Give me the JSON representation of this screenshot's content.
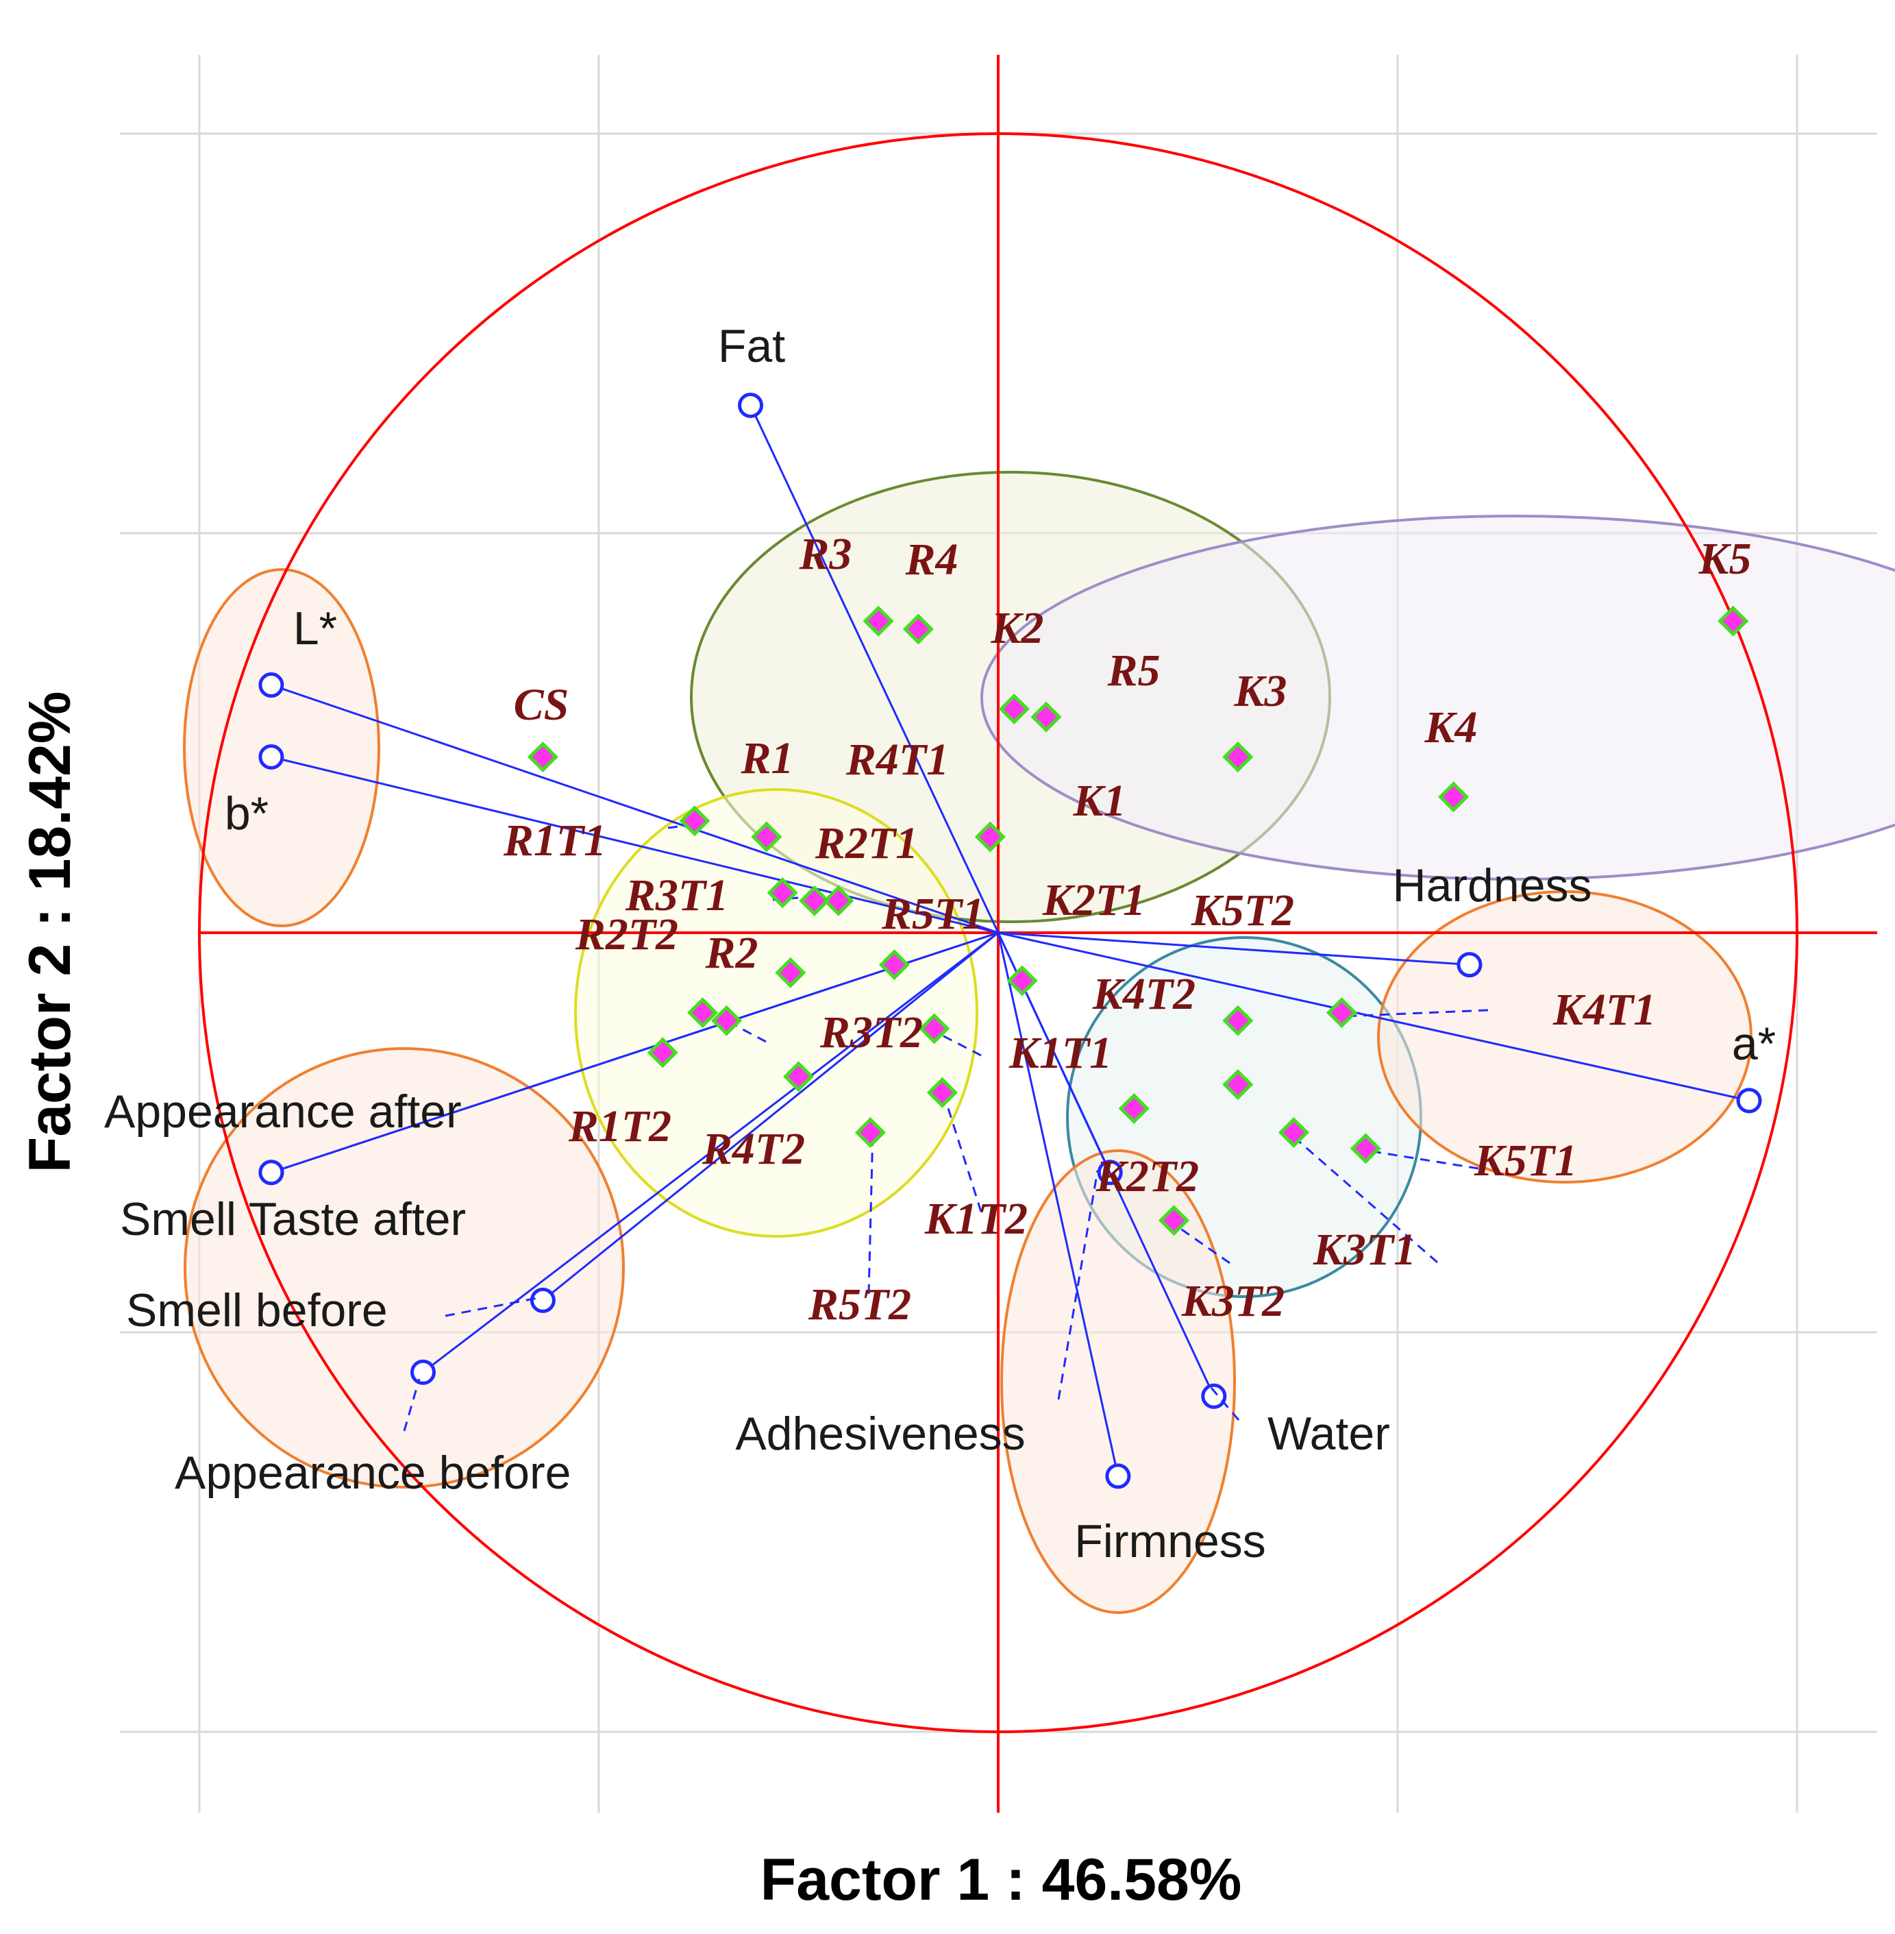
{
  "chart_data": {
    "type": "scatter",
    "subtype": "pca-biplot",
    "xlabel": "Factor 1 : 46.58%",
    "ylabel": "Factor 2 : 18.42%",
    "xlim": [
      -1.0,
      1.0
    ],
    "ylim": [
      -1.0,
      1.0
    ],
    "grid": true,
    "correlation_circle": true,
    "colors": {
      "circle": "#ff0000",
      "axes": "#ff0000",
      "vector": "#1f2bff",
      "point_fill": "#ff33ee",
      "point_stroke": "#44dd22",
      "obs_label": "#7a1414",
      "var_label": "#1a1a1a",
      "grid": "#d9d9d9"
    },
    "variables": [
      {
        "name": "Fat",
        "x": -0.31,
        "y": 0.66
      },
      {
        "name": "L*",
        "x": -0.91,
        "y": 0.31
      },
      {
        "name": "b*",
        "x": -0.91,
        "y": 0.22
      },
      {
        "name": "Hardness",
        "x": 0.59,
        "y": -0.04
      },
      {
        "name": "a*",
        "x": 0.94,
        "y": -0.21
      },
      {
        "name": "Appearance after",
        "x": -0.91,
        "y": -0.3
      },
      {
        "name": "Smell Taste after",
        "x": -0.91,
        "y": -0.3
      },
      {
        "name": "Smell before",
        "x": -0.57,
        "y": -0.46
      },
      {
        "name": "Appearance before",
        "x": -0.72,
        "y": -0.55
      },
      {
        "name": "Adhesiveness",
        "x": 0.14,
        "y": -0.3
      },
      {
        "name": "Water",
        "x": 0.27,
        "y": -0.58
      },
      {
        "name": "Firmness",
        "x": 0.15,
        "y": -0.68
      }
    ],
    "observations": [
      {
        "name": "CS",
        "x": -0.57,
        "y": 0.22
      },
      {
        "name": "R1",
        "x": -0.29,
        "y": 0.12
      },
      {
        "name": "R1T1",
        "x": -0.38,
        "y": 0.14
      },
      {
        "name": "R2T1",
        "x": -0.2,
        "y": 0.04
      },
      {
        "name": "R3T1",
        "x": -0.27,
        "y": 0.05
      },
      {
        "name": "R4T1",
        "x": -0.23,
        "y": 0.04
      },
      {
        "name": "R2",
        "x": -0.26,
        "y": -0.05
      },
      {
        "name": "R2T2",
        "x": -0.37,
        "y": -0.1
      },
      {
        "name": "R3T2",
        "x": -0.34,
        "y": -0.11
      },
      {
        "name": "R1T2",
        "x": -0.42,
        "y": -0.15
      },
      {
        "name": "R4T2",
        "x": -0.25,
        "y": -0.18
      },
      {
        "name": "R5T1",
        "x": -0.13,
        "y": -0.04
      },
      {
        "name": "K1T1",
        "x": -0.08,
        "y": -0.12
      },
      {
        "name": "K1T2",
        "x": -0.07,
        "y": -0.2
      },
      {
        "name": "R5T2",
        "x": -0.16,
        "y": -0.25
      },
      {
        "name": "R3",
        "x": -0.15,
        "y": 0.39
      },
      {
        "name": "R4",
        "x": -0.1,
        "y": 0.38
      },
      {
        "name": "K2",
        "x": 0.02,
        "y": 0.28
      },
      {
        "name": "R5",
        "x": 0.06,
        "y": 0.27
      },
      {
        "name": "K1",
        "x": -0.01,
        "y": 0.12
      },
      {
        "name": "K2T1",
        "x": 0.03,
        "y": -0.06
      },
      {
        "name": "K3",
        "x": 0.3,
        "y": 0.22
      },
      {
        "name": "K4",
        "x": 0.57,
        "y": 0.17
      },
      {
        "name": "K5",
        "x": 0.92,
        "y": 0.39
      },
      {
        "name": "K5T2",
        "x": 0.3,
        "y": -0.11
      },
      {
        "name": "K4T1",
        "x": 0.43,
        "y": -0.1
      },
      {
        "name": "K4T2",
        "x": 0.3,
        "y": -0.19
      },
      {
        "name": "K2T2",
        "x": 0.17,
        "y": -0.22
      },
      {
        "name": "K3T1",
        "x": 0.37,
        "y": -0.25
      },
      {
        "name": "K5T1",
        "x": 0.46,
        "y": -0.27
      },
      {
        "name": "K3T2",
        "x": 0.22,
        "y": -0.36
      }
    ]
  }
}
